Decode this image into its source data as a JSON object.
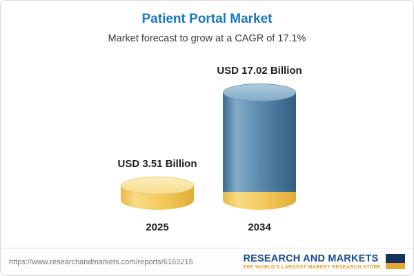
{
  "title": "Patient Portal Market",
  "subtitle": "Market forecast to grow at a CAGR of 17.1%",
  "chart_data": {
    "type": "bar",
    "title": "Patient Portal Market",
    "subtitle": "Market forecast to grow at a CAGR of 17.1%",
    "unit": "USD Billion",
    "cagr_percent": 17.1,
    "categories": [
      "2025",
      "2034"
    ],
    "values": [
      3.51,
      17.02
    ],
    "value_labels": [
      "USD 3.51 Billion",
      "USD 17.02 Billion"
    ],
    "bar_colors": [
      "#f3cb5e",
      "#5d8aac"
    ],
    "legend_position": "none",
    "grid": false
  },
  "footer": {
    "url": "https://www.researchandmarkets.com/reports/6163215",
    "brand": "RESEARCH AND MARKETS",
    "tagline": "THE WORLD'S LARGEST MARKET RESEARCH STORE"
  },
  "colors": {
    "title_blue": "#1878be",
    "gold": "#f3cb5e",
    "steel_blue": "#5d8aac",
    "brand_navy": "#1b4a8f",
    "brand_gold": "#dfa228"
  }
}
